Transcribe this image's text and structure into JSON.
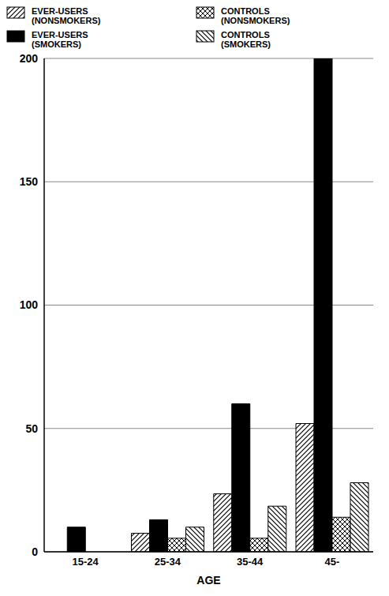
{
  "chart_data": {
    "type": "bar",
    "x_label": "AGE",
    "categories": [
      "15-24",
      "25-34",
      "35-44",
      "45-"
    ],
    "series": [
      {
        "name": "EVER-USERS (NONSMOKERS)",
        "color": "#000000",
        "values": [
          0,
          7.5,
          23.5,
          52
        ]
      },
      {
        "name": "EVER-USERS (SMOKERS)",
        "color": "#000000",
        "values": [
          10,
          13,
          60,
          200
        ]
      },
      {
        "name": "CONTROLS (NONSMOKERS)",
        "color": "#000000",
        "values": [
          0,
          5.5,
          5.5,
          14
        ]
      },
      {
        "name": "CONTROLS (SMOKERS)",
        "color": "#000000",
        "values": [
          0,
          10,
          18.5,
          28
        ]
      }
    ],
    "ylim": [
      0,
      200
    ],
    "yticks": [
      0,
      50,
      100,
      150,
      200
    ],
    "grid": true,
    "legend": "top"
  }
}
